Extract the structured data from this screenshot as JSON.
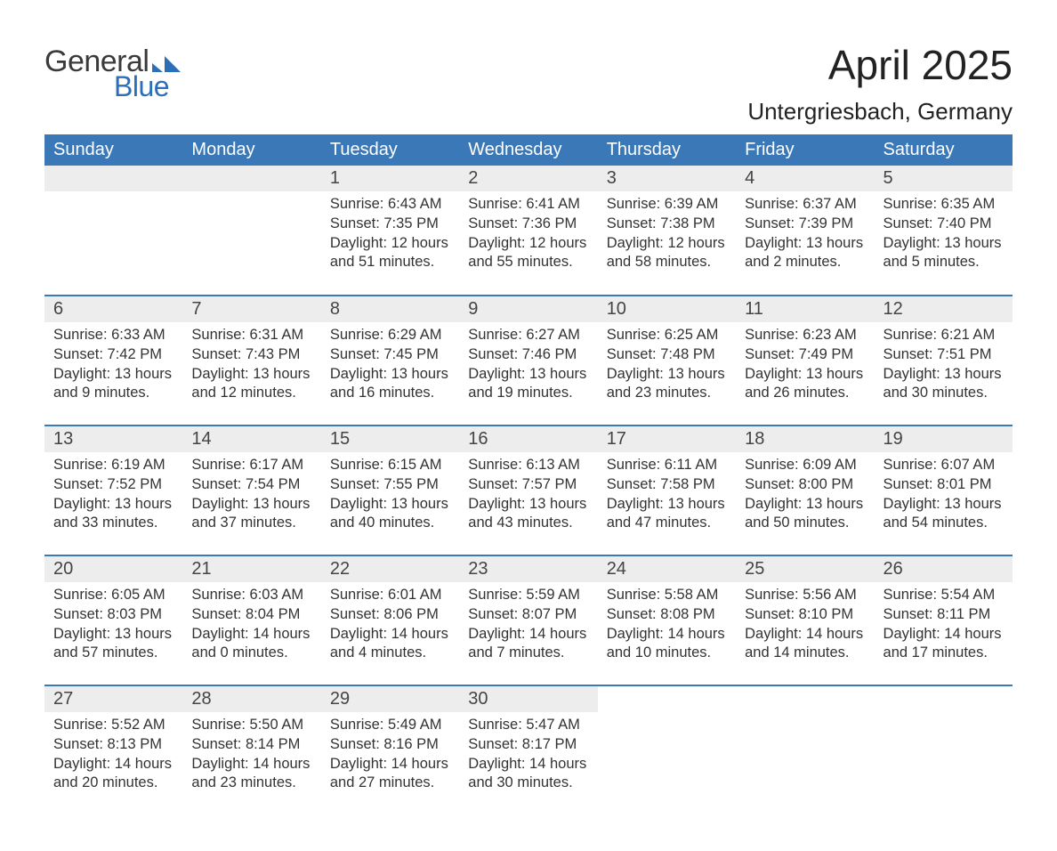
{
  "logo": {
    "text1": "General",
    "text2": "Blue",
    "flag_color": "#2a6fb7"
  },
  "title": "April 2025",
  "location": "Untergriesbach, Germany",
  "colors": {
    "header_bg": "#3b78b8",
    "header_text": "#ffffff",
    "daynum_bg": "#ededed",
    "row_border": "#3b78b8",
    "body_text": "#333333",
    "page_bg": "#ffffff"
  },
  "weekdays": [
    "Sunday",
    "Monday",
    "Tuesday",
    "Wednesday",
    "Thursday",
    "Friday",
    "Saturday"
  ],
  "weeks": [
    [
      null,
      null,
      {
        "n": "1",
        "sunrise": "Sunrise: 6:43 AM",
        "sunset": "Sunset: 7:35 PM",
        "day1": "Daylight: 12 hours",
        "day2": "and 51 minutes."
      },
      {
        "n": "2",
        "sunrise": "Sunrise: 6:41 AM",
        "sunset": "Sunset: 7:36 PM",
        "day1": "Daylight: 12 hours",
        "day2": "and 55 minutes."
      },
      {
        "n": "3",
        "sunrise": "Sunrise: 6:39 AM",
        "sunset": "Sunset: 7:38 PM",
        "day1": "Daylight: 12 hours",
        "day2": "and 58 minutes."
      },
      {
        "n": "4",
        "sunrise": "Sunrise: 6:37 AM",
        "sunset": "Sunset: 7:39 PM",
        "day1": "Daylight: 13 hours",
        "day2": "and 2 minutes."
      },
      {
        "n": "5",
        "sunrise": "Sunrise: 6:35 AM",
        "sunset": "Sunset: 7:40 PM",
        "day1": "Daylight: 13 hours",
        "day2": "and 5 minutes."
      }
    ],
    [
      {
        "n": "6",
        "sunrise": "Sunrise: 6:33 AM",
        "sunset": "Sunset: 7:42 PM",
        "day1": "Daylight: 13 hours",
        "day2": "and 9 minutes."
      },
      {
        "n": "7",
        "sunrise": "Sunrise: 6:31 AM",
        "sunset": "Sunset: 7:43 PM",
        "day1": "Daylight: 13 hours",
        "day2": "and 12 minutes."
      },
      {
        "n": "8",
        "sunrise": "Sunrise: 6:29 AM",
        "sunset": "Sunset: 7:45 PM",
        "day1": "Daylight: 13 hours",
        "day2": "and 16 minutes."
      },
      {
        "n": "9",
        "sunrise": "Sunrise: 6:27 AM",
        "sunset": "Sunset: 7:46 PM",
        "day1": "Daylight: 13 hours",
        "day2": "and 19 minutes."
      },
      {
        "n": "10",
        "sunrise": "Sunrise: 6:25 AM",
        "sunset": "Sunset: 7:48 PM",
        "day1": "Daylight: 13 hours",
        "day2": "and 23 minutes."
      },
      {
        "n": "11",
        "sunrise": "Sunrise: 6:23 AM",
        "sunset": "Sunset: 7:49 PM",
        "day1": "Daylight: 13 hours",
        "day2": "and 26 minutes."
      },
      {
        "n": "12",
        "sunrise": "Sunrise: 6:21 AM",
        "sunset": "Sunset: 7:51 PM",
        "day1": "Daylight: 13 hours",
        "day2": "and 30 minutes."
      }
    ],
    [
      {
        "n": "13",
        "sunrise": "Sunrise: 6:19 AM",
        "sunset": "Sunset: 7:52 PM",
        "day1": "Daylight: 13 hours",
        "day2": "and 33 minutes."
      },
      {
        "n": "14",
        "sunrise": "Sunrise: 6:17 AM",
        "sunset": "Sunset: 7:54 PM",
        "day1": "Daylight: 13 hours",
        "day2": "and 37 minutes."
      },
      {
        "n": "15",
        "sunrise": "Sunrise: 6:15 AM",
        "sunset": "Sunset: 7:55 PM",
        "day1": "Daylight: 13 hours",
        "day2": "and 40 minutes."
      },
      {
        "n": "16",
        "sunrise": "Sunrise: 6:13 AM",
        "sunset": "Sunset: 7:57 PM",
        "day1": "Daylight: 13 hours",
        "day2": "and 43 minutes."
      },
      {
        "n": "17",
        "sunrise": "Sunrise: 6:11 AM",
        "sunset": "Sunset: 7:58 PM",
        "day1": "Daylight: 13 hours",
        "day2": "and 47 minutes."
      },
      {
        "n": "18",
        "sunrise": "Sunrise: 6:09 AM",
        "sunset": "Sunset: 8:00 PM",
        "day1": "Daylight: 13 hours",
        "day2": "and 50 minutes."
      },
      {
        "n": "19",
        "sunrise": "Sunrise: 6:07 AM",
        "sunset": "Sunset: 8:01 PM",
        "day1": "Daylight: 13 hours",
        "day2": "and 54 minutes."
      }
    ],
    [
      {
        "n": "20",
        "sunrise": "Sunrise: 6:05 AM",
        "sunset": "Sunset: 8:03 PM",
        "day1": "Daylight: 13 hours",
        "day2": "and 57 minutes."
      },
      {
        "n": "21",
        "sunrise": "Sunrise: 6:03 AM",
        "sunset": "Sunset: 8:04 PM",
        "day1": "Daylight: 14 hours",
        "day2": "and 0 minutes."
      },
      {
        "n": "22",
        "sunrise": "Sunrise: 6:01 AM",
        "sunset": "Sunset: 8:06 PM",
        "day1": "Daylight: 14 hours",
        "day2": "and 4 minutes."
      },
      {
        "n": "23",
        "sunrise": "Sunrise: 5:59 AM",
        "sunset": "Sunset: 8:07 PM",
        "day1": "Daylight: 14 hours",
        "day2": "and 7 minutes."
      },
      {
        "n": "24",
        "sunrise": "Sunrise: 5:58 AM",
        "sunset": "Sunset: 8:08 PM",
        "day1": "Daylight: 14 hours",
        "day2": "and 10 minutes."
      },
      {
        "n": "25",
        "sunrise": "Sunrise: 5:56 AM",
        "sunset": "Sunset: 8:10 PM",
        "day1": "Daylight: 14 hours",
        "day2": "and 14 minutes."
      },
      {
        "n": "26",
        "sunrise": "Sunrise: 5:54 AM",
        "sunset": "Sunset: 8:11 PM",
        "day1": "Daylight: 14 hours",
        "day2": "and 17 minutes."
      }
    ],
    [
      {
        "n": "27",
        "sunrise": "Sunrise: 5:52 AM",
        "sunset": "Sunset: 8:13 PM",
        "day1": "Daylight: 14 hours",
        "day2": "and 20 minutes."
      },
      {
        "n": "28",
        "sunrise": "Sunrise: 5:50 AM",
        "sunset": "Sunset: 8:14 PM",
        "day1": "Daylight: 14 hours",
        "day2": "and 23 minutes."
      },
      {
        "n": "29",
        "sunrise": "Sunrise: 5:49 AM",
        "sunset": "Sunset: 8:16 PM",
        "day1": "Daylight: 14 hours",
        "day2": "and 27 minutes."
      },
      {
        "n": "30",
        "sunrise": "Sunrise: 5:47 AM",
        "sunset": "Sunset: 8:17 PM",
        "day1": "Daylight: 14 hours",
        "day2": "and 30 minutes."
      },
      null,
      null,
      null
    ]
  ]
}
